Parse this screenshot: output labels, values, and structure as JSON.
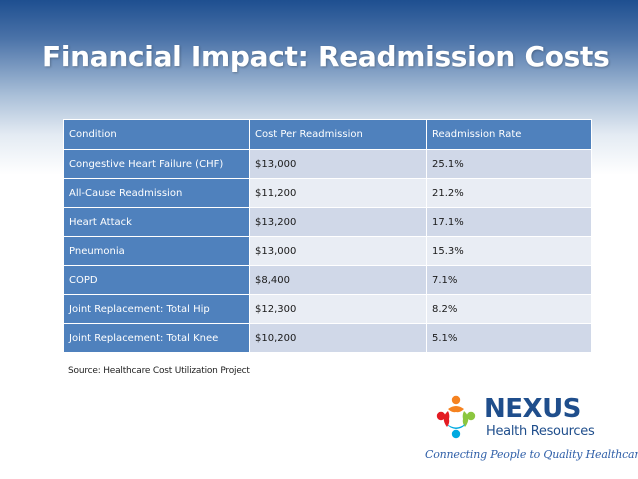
{
  "slide": {
    "title": "Financial Impact: Readmission Costs",
    "source": "Source: Healthcare Cost Utilization Project"
  },
  "table": {
    "headers": [
      "Condition",
      "Cost Per Readmission",
      "Readmission Rate"
    ],
    "rows": [
      {
        "condition": "Congestive Heart Failure (CHF)",
        "cost": "$13,000",
        "rate": "25.1%"
      },
      {
        "condition": "All-Cause Readmission",
        "cost": "$11,200",
        "rate": "21.2%"
      },
      {
        "condition": "Heart Attack",
        "cost": "$13,200",
        "rate": "17.1%"
      },
      {
        "condition": "Pneumonia",
        "cost": "$13,000",
        "rate": "15.3%"
      },
      {
        "condition": "COPD",
        "cost": "$8,400",
        "rate": "7.1%"
      },
      {
        "condition": "Joint Replacement: Total Hip",
        "cost": "$12,300",
        "rate": "8.2%"
      },
      {
        "condition": "Joint Replacement: Total Knee",
        "cost": "$10,200",
        "rate": "5.1%"
      }
    ]
  },
  "logo": {
    "name": "NEXUS",
    "subtitle": "Health Resources",
    "tagline": "Connecting People to Quality Healthcare",
    "icon": "people-circle-logo-icon",
    "colors": [
      "#f58220",
      "#e31b23",
      "#8cc63f",
      "#00a9e0",
      "#1f4e8c"
    ]
  },
  "colors": {
    "header_band": "#1e4f90",
    "table_header": "#4f81bd",
    "row_odd": "#d0d8e8",
    "row_even": "#e9edf4",
    "brand_blue": "#1f4e8c"
  }
}
